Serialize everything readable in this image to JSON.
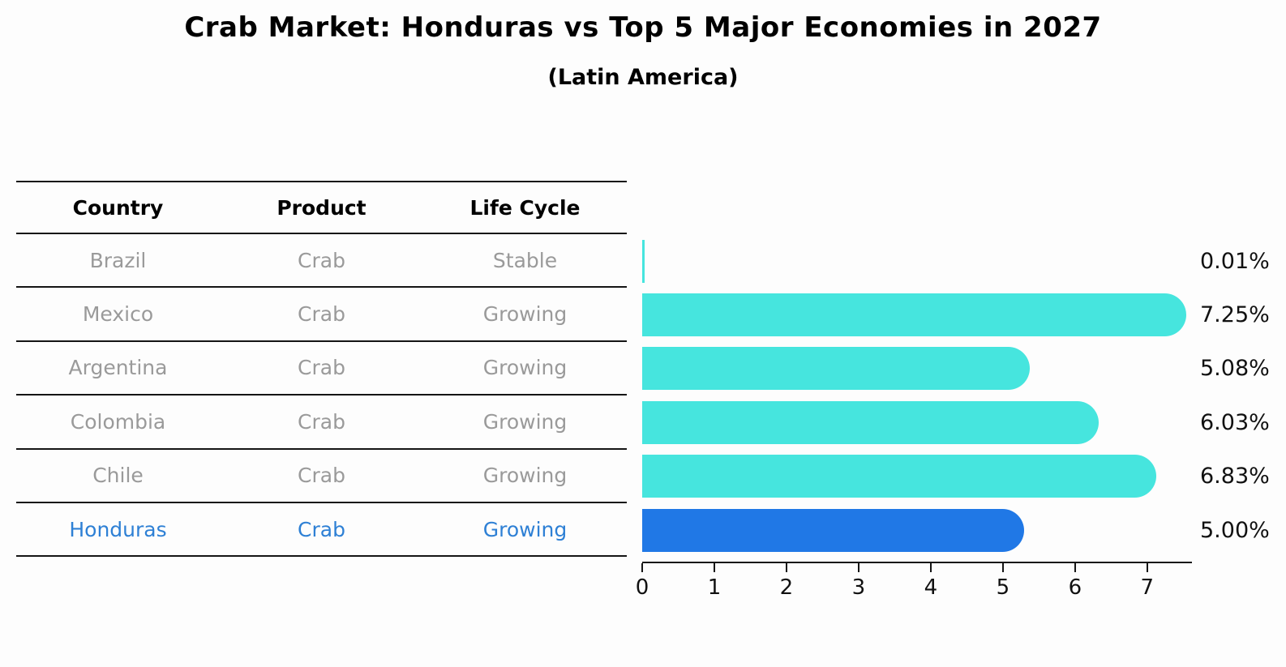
{
  "title": "Crab Market: Honduras vs Top 5 Major Economies in 2027",
  "subtitle": "(Latin America)",
  "table": {
    "headers": [
      "Country",
      "Product",
      "Life Cycle"
    ],
    "rows": [
      {
        "country": "Brazil",
        "product": "Crab",
        "life_cycle": "Stable",
        "highlight": false
      },
      {
        "country": "Mexico",
        "product": "Crab",
        "life_cycle": "Growing",
        "highlight": false
      },
      {
        "country": "Argentina",
        "product": "Crab",
        "life_cycle": "Growing",
        "highlight": false
      },
      {
        "country": "Colombia",
        "product": "Crab",
        "life_cycle": "Growing",
        "highlight": false
      },
      {
        "country": "Chile",
        "product": "Crab",
        "life_cycle": "Growing",
        "highlight": false
      },
      {
        "country": "Honduras",
        "product": "Crab",
        "life_cycle": "Growing",
        "highlight": true
      }
    ]
  },
  "chart_data": {
    "type": "bar",
    "orientation": "horizontal",
    "categories": [
      "Brazil",
      "Mexico",
      "Argentina",
      "Colombia",
      "Chile",
      "Honduras"
    ],
    "values": [
      0.01,
      7.25,
      5.08,
      6.03,
      6.83,
      5.0
    ],
    "value_labels": [
      "0.01%",
      "7.25%",
      "5.08%",
      "6.03%",
      "6.83%",
      "5.00%"
    ],
    "x_ticks": [
      0,
      1,
      2,
      3,
      4,
      5,
      6,
      7
    ],
    "xlim": [
      0,
      7.62
    ],
    "grid": false,
    "bar_color": "#46e5de",
    "highlight_index": 5,
    "highlight_bar_color": "#2078e6",
    "highlight_text_color": "#2e80d5",
    "value_label_position": "right-of-plot"
  }
}
